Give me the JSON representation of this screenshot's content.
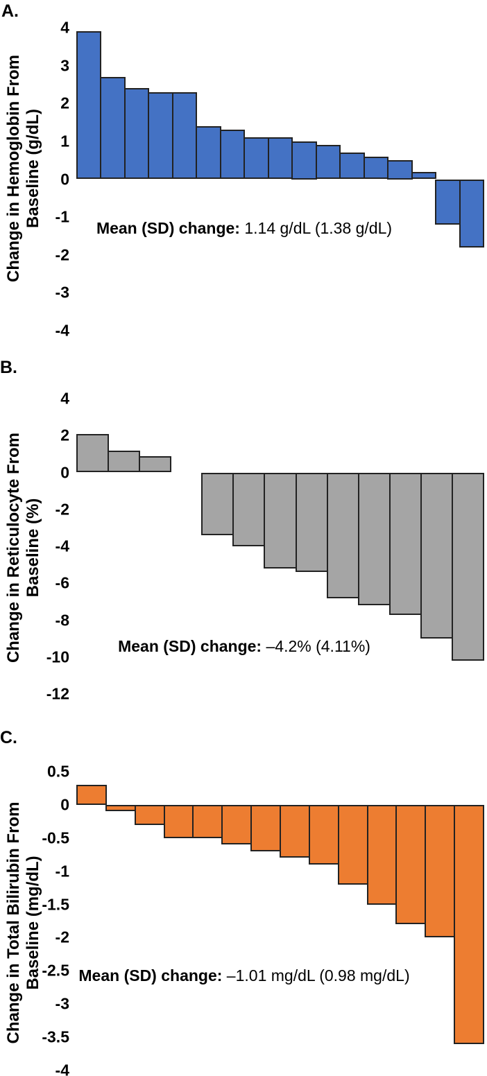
{
  "figure_title": "",
  "panels": [
    {
      "label": "A.",
      "y_title_line1": "Change in Hemoglobin From",
      "y_title_line2": "Baseline (g/dL)",
      "annotation_label": "Mean (SD) change:",
      "annotation_value": " 1.14 g/dL (1.38 g/dL)",
      "bar_color": "#4472C4"
    },
    {
      "label": "B.",
      "y_title_line1": "Change in Reticulocyte From",
      "y_title_line2": "Baseline (%)",
      "annotation_label": "Mean (SD) change:",
      "annotation_value": " –4.2% (4.11%)",
      "bar_color": "#A5A5A5"
    },
    {
      "label": "C.",
      "y_title_line1": "Change in Total Bilirubin From",
      "y_title_line2": "Baseline (mg/dL)",
      "annotation_label": "Mean (SD) change:",
      "annotation_value": " –1.01 mg/dL (0.98 mg/dL)",
      "bar_color": "#ED7D31"
    }
  ],
  "chart_data": [
    {
      "type": "bar",
      "subtype": "waterfall-per-patient",
      "panel": "A",
      "title": "",
      "xlabel": "",
      "ylabel": "Change in Hemoglobin From Baseline (g/dL)",
      "values": [
        3.9,
        2.7,
        2.4,
        2.3,
        2.3,
        1.4,
        1.3,
        1.1,
        1.1,
        1.0,
        0.9,
        0.7,
        0.6,
        0.5,
        0.2,
        -1.2,
        -1.8
      ],
      "yticks": [
        "4",
        "3",
        "2",
        "1",
        "0",
        "-1",
        "-2",
        "-3",
        "-4"
      ],
      "ylim": [
        -4,
        4
      ],
      "bar_color": "#4472C4",
      "grid": false,
      "legend": false,
      "annotation": "Mean (SD) change: 1.14 g/dL (1.38 g/dL)"
    },
    {
      "type": "bar",
      "subtype": "waterfall-per-patient",
      "panel": "B",
      "title": "",
      "xlabel": "",
      "ylabel": "Change in Reticulocyte From Baseline (%)",
      "values": [
        2.1,
        1.2,
        0.9,
        0,
        -3.4,
        -4.0,
        -5.2,
        -5.4,
        -6.8,
        -7.2,
        -7.7,
        -9.0,
        -10.2
      ],
      "yticks": [
        "4",
        "2",
        "0",
        "-2",
        "-4",
        "-6",
        "-8",
        "-10",
        "-12"
      ],
      "ylim": [
        -12,
        4
      ],
      "bar_color": "#A5A5A5",
      "grid": false,
      "legend": false,
      "annotation": "Mean (SD) change: –4.2% (4.11%)"
    },
    {
      "type": "bar",
      "subtype": "waterfall-per-patient",
      "panel": "C",
      "title": "",
      "xlabel": "",
      "ylabel": "Change in Total Bilirubin From Baseline (mg/dL)",
      "values": [
        0.3,
        -0.1,
        -0.3,
        -0.5,
        -0.5,
        -0.6,
        -0.7,
        -0.8,
        -0.9,
        -1.2,
        -1.5,
        -1.8,
        -2.0,
        -3.6
      ],
      "yticks": [
        "0.5",
        "0",
        "-0.5",
        "-1",
        "-1.5",
        "-2",
        "-2.5",
        "-3",
        "-3.5",
        "-4"
      ],
      "ylim": [
        -4,
        0.5
      ],
      "bar_color": "#ED7D31",
      "grid": false,
      "legend": false,
      "annotation": "Mean (SD) change: –1.01 mg/dL (0.98 mg/dL)"
    }
  ]
}
